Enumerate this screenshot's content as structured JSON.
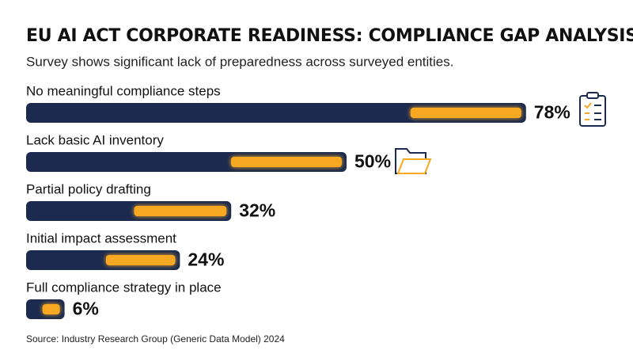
{
  "chart_data": {
    "type": "bar",
    "orientation": "horizontal",
    "title": "EU AI ACT CORPORATE READINESS: COMPLIANCE GAP ANALYSIS",
    "subtitle": "Survey shows significant lack of preparedness across surveyed entities.",
    "categories": [
      "No meaningful compliance steps",
      "Lack basic AI inventory",
      "Partial policy drafting",
      "Initial impact assessment",
      "Full compliance strategy in place"
    ],
    "values": [
      78,
      50,
      32,
      24,
      6
    ],
    "value_labels": [
      "78%",
      "50%",
      "32%",
      "24%",
      "6%"
    ],
    "color": "#1b2a4e",
    "source": "Source: Industry Research Group (Generic Data Model) 2024"
  }
}
